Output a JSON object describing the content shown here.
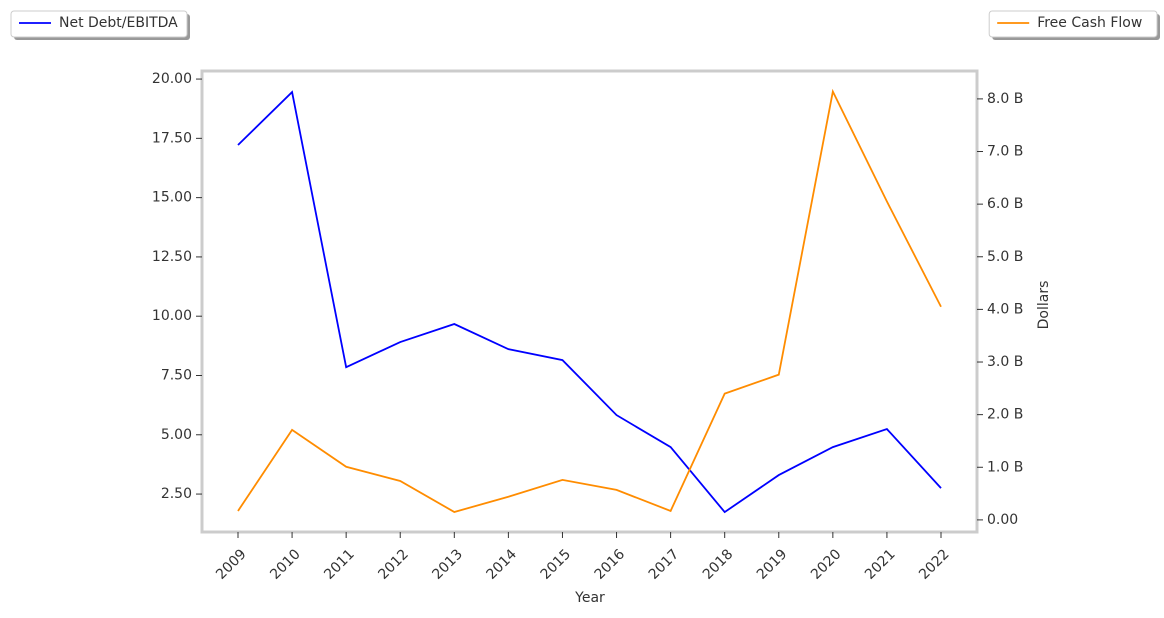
{
  "chart_data": {
    "type": "line",
    "xlabel": "Year",
    "y2label": "Dollars",
    "categories": [
      "2009",
      "2010",
      "2011",
      "2012",
      "2013",
      "2014",
      "2015",
      "2016",
      "2017",
      "2018",
      "2019",
      "2020",
      "2021",
      "2022"
    ],
    "series": [
      {
        "name": "Net Debt/EBITDA",
        "color": "#0000ff",
        "axis": "y",
        "legend": "upper left",
        "values": [
          17.22,
          19.45,
          7.85,
          8.91,
          9.67,
          8.61,
          8.15,
          5.83,
          4.48,
          1.74,
          3.3,
          4.48,
          5.24,
          2.75
        ]
      },
      {
        "name": "Free Cash Flow",
        "color": "#ff8c00",
        "axis": "y2",
        "legend": "upper right",
        "values": [
          0.17,
          1.71,
          1.01,
          0.74,
          0.15,
          0.44,
          0.76,
          0.57,
          0.17,
          2.4,
          2.76,
          8.14,
          6.05,
          4.05
        ]
      }
    ],
    "ylim": [
      0.9,
      20.34
    ],
    "yticks": [
      {
        "value": 2.5,
        "label": "2.50"
      },
      {
        "value": 5,
        "label": "5.00"
      },
      {
        "value": 7.5,
        "label": "7.50"
      },
      {
        "value": 10,
        "label": "10.00"
      },
      {
        "value": 12.5,
        "label": "12.50"
      },
      {
        "value": 15,
        "label": "15.00"
      },
      {
        "value": 17.5,
        "label": "17.50"
      },
      {
        "value": 20,
        "label": "20.00"
      }
    ],
    "y2lim": [
      -0.23,
      8.53
    ],
    "y2ticks": [
      {
        "value": 0,
        "label": "0.00"
      },
      {
        "value": 1,
        "label": "1.0 B"
      },
      {
        "value": 2,
        "label": "2.0 B"
      },
      {
        "value": 3,
        "label": "3.0 B"
      },
      {
        "value": 4,
        "label": "4.0 B"
      },
      {
        "value": 5,
        "label": "5.0 B"
      },
      {
        "value": 6,
        "label": "6.0 B"
      },
      {
        "value": 7,
        "label": "7.0 B"
      },
      {
        "value": 8,
        "label": "8.0 B"
      }
    ]
  }
}
